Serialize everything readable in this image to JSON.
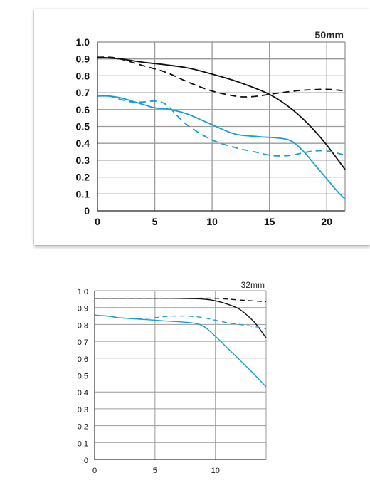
{
  "chart_data": [
    {
      "type": "line",
      "title": "50mm",
      "xlabel": "",
      "ylabel": "",
      "xlim": [
        0,
        21.6
      ],
      "ylim": [
        0,
        1.0
      ],
      "x_ticks": [
        "0",
        "5",
        "10",
        "15",
        "20"
      ],
      "y_ticks": [
        "1.0",
        "0.9",
        "0.8",
        "0.7",
        "0.6",
        "0.5",
        "0.4",
        "0.3",
        "0.2",
        "0.1",
        "0"
      ],
      "grid": true,
      "legend": "none",
      "series": [
        {
          "color": "#111111",
          "style": "solid",
          "x": [
            0,
            2,
            4,
            6,
            8,
            10,
            12,
            14,
            15,
            16,
            17,
            18,
            19,
            20,
            21,
            21.6
          ],
          "y": [
            0.91,
            0.9,
            0.88,
            0.865,
            0.845,
            0.81,
            0.77,
            0.72,
            0.69,
            0.65,
            0.6,
            0.54,
            0.47,
            0.39,
            0.3,
            0.245
          ]
        },
        {
          "color": "#111111",
          "style": "dashed",
          "x": [
            0,
            1,
            2,
            4,
            6,
            8,
            10,
            12,
            13,
            14,
            16,
            18,
            20,
            21,
            21.6
          ],
          "y": [
            0.91,
            0.91,
            0.9,
            0.86,
            0.82,
            0.76,
            0.71,
            0.68,
            0.675,
            0.68,
            0.7,
            0.715,
            0.72,
            0.715,
            0.71
          ]
        },
        {
          "color": "#1a9fd4",
          "style": "solid",
          "x": [
            0,
            1,
            2,
            4,
            5,
            6,
            7,
            8,
            10,
            12,
            14,
            16,
            17,
            18,
            19,
            20,
            21,
            21.6
          ],
          "y": [
            0.68,
            0.68,
            0.67,
            0.63,
            0.61,
            0.605,
            0.59,
            0.57,
            0.51,
            0.455,
            0.44,
            0.43,
            0.41,
            0.35,
            0.27,
            0.19,
            0.11,
            0.07
          ]
        },
        {
          "color": "#1a9fd4",
          "style": "dashed",
          "x": [
            0,
            1,
            2,
            3,
            4,
            5,
            6,
            7,
            8,
            10,
            12,
            14,
            15,
            16,
            17,
            18,
            19,
            20,
            21,
            21.6
          ],
          "y": [
            0.68,
            0.68,
            0.66,
            0.645,
            0.645,
            0.65,
            0.63,
            0.56,
            0.5,
            0.42,
            0.375,
            0.345,
            0.33,
            0.325,
            0.33,
            0.345,
            0.355,
            0.355,
            0.34,
            0.33
          ]
        }
      ]
    },
    {
      "type": "line",
      "title": "32mm",
      "xlabel": "",
      "ylabel": "",
      "xlim": [
        0,
        14.2
      ],
      "ylim": [
        0,
        1.0
      ],
      "x_ticks": [
        "0",
        "5",
        "10"
      ],
      "y_ticks": [
        "1.0",
        "0.9",
        "0.8",
        "0.7",
        "0.6",
        "0.5",
        "0.4",
        "0.3",
        "0.2",
        "0.1",
        "0"
      ],
      "grid": true,
      "legend": "none",
      "series": [
        {
          "color": "#111111",
          "style": "solid",
          "x": [
            0,
            2,
            4,
            6,
            8,
            9,
            10,
            11,
            12,
            13,
            13.5,
            14.2
          ],
          "y": [
            0.955,
            0.955,
            0.955,
            0.955,
            0.953,
            0.95,
            0.94,
            0.92,
            0.89,
            0.83,
            0.79,
            0.72
          ]
        },
        {
          "color": "#111111",
          "style": "dashed",
          "x": [
            0,
            4,
            8,
            10,
            11,
            12,
            13,
            14.2
          ],
          "y": [
            0.955,
            0.955,
            0.955,
            0.955,
            0.95,
            0.945,
            0.94,
            0.935
          ]
        },
        {
          "color": "#1a9fd4",
          "style": "solid",
          "x": [
            0,
            1,
            2,
            4,
            6,
            8,
            9,
            10,
            11,
            12,
            13,
            14.2
          ],
          "y": [
            0.855,
            0.85,
            0.84,
            0.83,
            0.82,
            0.81,
            0.79,
            0.73,
            0.66,
            0.59,
            0.52,
            0.43
          ]
        },
        {
          "color": "#1a9fd4",
          "style": "dashed",
          "x": [
            0,
            1,
            2,
            3,
            4,
            5,
            6,
            7,
            8,
            9,
            10,
            11,
            12,
            13,
            14.2
          ],
          "y": [
            0.855,
            0.85,
            0.84,
            0.835,
            0.835,
            0.84,
            0.848,
            0.85,
            0.848,
            0.84,
            0.825,
            0.81,
            0.8,
            0.79,
            0.775
          ]
        }
      ]
    }
  ]
}
